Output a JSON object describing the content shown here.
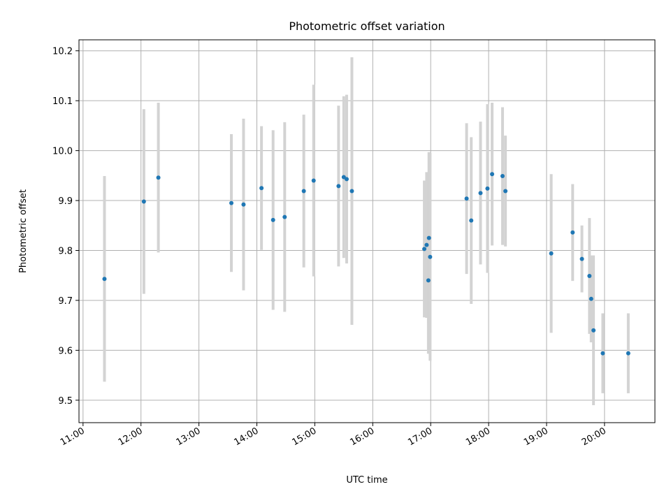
{
  "chart_data": {
    "type": "scatter",
    "title": "Photometric offset variation",
    "xlabel": "UTC time",
    "ylabel": "Photometric offset",
    "x_unit": "hours (UTC)",
    "xlim": [
      10.93,
      20.87
    ],
    "ylim": [
      9.455,
      10.222
    ],
    "x_ticks": [
      {
        "value": 11,
        "label": "11:00"
      },
      {
        "value": 12,
        "label": "12:00"
      },
      {
        "value": 13,
        "label": "13:00"
      },
      {
        "value": 14,
        "label": "14:00"
      },
      {
        "value": 15,
        "label": "15:00"
      },
      {
        "value": 16,
        "label": "16:00"
      },
      {
        "value": 17,
        "label": "17:00"
      },
      {
        "value": 18,
        "label": "18:00"
      },
      {
        "value": 19,
        "label": "19:00"
      },
      {
        "value": 20,
        "label": "20:00"
      }
    ],
    "y_ticks": [
      {
        "value": 9.5,
        "label": "9.5"
      },
      {
        "value": 9.6,
        "label": "9.6"
      },
      {
        "value": 9.7,
        "label": "9.7"
      },
      {
        "value": 9.8,
        "label": "9.8"
      },
      {
        "value": 9.9,
        "label": "9.9"
      },
      {
        "value": 10.0,
        "label": "10.0"
      },
      {
        "value": 10.1,
        "label": "10.1"
      },
      {
        "value": 10.2,
        "label": "10.2"
      }
    ],
    "grid": true,
    "colors": {
      "point": "#1f77b4",
      "errorbar": "#d3d3d3",
      "grid": "#b0b0b0"
    },
    "points": [
      {
        "x": 11.37,
        "y": 9.743,
        "err": 0.206
      },
      {
        "x": 12.05,
        "y": 9.898,
        "err": 0.185
      },
      {
        "x": 12.3,
        "y": 9.946,
        "err": 0.15
      },
      {
        "x": 13.56,
        "y": 9.895,
        "err": 0.138
      },
      {
        "x": 13.77,
        "y": 9.892,
        "err": 0.172
      },
      {
        "x": 14.08,
        "y": 9.925,
        "err": 0.124
      },
      {
        "x": 14.28,
        "y": 9.861,
        "err": 0.18
      },
      {
        "x": 14.48,
        "y": 9.867,
        "err": 0.19
      },
      {
        "x": 14.81,
        "y": 9.919,
        "err": 0.153
      },
      {
        "x": 14.98,
        "y": 9.94,
        "err": 0.192
      },
      {
        "x": 15.41,
        "y": 9.929,
        "err": 0.161
      },
      {
        "x": 15.5,
        "y": 9.947,
        "err": 0.162
      },
      {
        "x": 15.55,
        "y": 9.943,
        "err": 0.169
      },
      {
        "x": 15.64,
        "y": 9.919,
        "err": 0.268
      },
      {
        "x": 16.89,
        "y": 9.803,
        "err": 0.137
      },
      {
        "x": 16.93,
        "y": 9.811,
        "err": 0.146
      },
      {
        "x": 16.96,
        "y": 9.74,
        "err": 0.147
      },
      {
        "x": 16.97,
        "y": 9.825,
        "err": 0.172
      },
      {
        "x": 16.99,
        "y": 9.787,
        "err": 0.208
      },
      {
        "x": 17.62,
        "y": 9.904,
        "err": 0.151
      },
      {
        "x": 17.7,
        "y": 9.86,
        "err": 0.167
      },
      {
        "x": 17.86,
        "y": 9.915,
        "err": 0.143
      },
      {
        "x": 17.98,
        "y": 9.924,
        "err": 0.169
      },
      {
        "x": 18.06,
        "y": 9.953,
        "err": 0.143
      },
      {
        "x": 18.24,
        "y": 9.949,
        "err": 0.138
      },
      {
        "x": 18.29,
        "y": 9.919,
        "err": 0.111
      },
      {
        "x": 19.08,
        "y": 9.794,
        "err": 0.159
      },
      {
        "x": 19.45,
        "y": 9.836,
        "err": 0.097
      },
      {
        "x": 19.61,
        "y": 9.783,
        "err": 0.067
      },
      {
        "x": 19.74,
        "y": 9.749,
        "err": 0.116
      },
      {
        "x": 19.77,
        "y": 9.703,
        "err": 0.087
      },
      {
        "x": 19.81,
        "y": 9.64,
        "err": 0.15
      },
      {
        "x": 19.97,
        "y": 9.594,
        "err": 0.08
      },
      {
        "x": 20.41,
        "y": 9.594,
        "err": 0.08
      }
    ]
  }
}
